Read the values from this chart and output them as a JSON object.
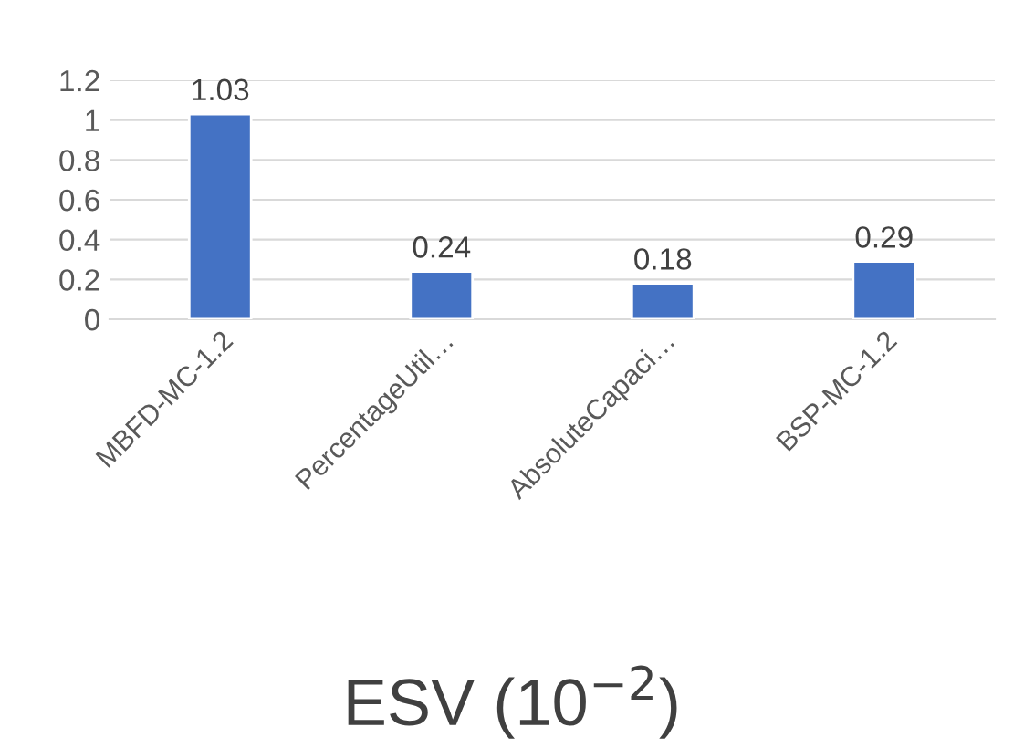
{
  "chart_data": {
    "type": "bar",
    "xlabel": "ESV (10$^{−2}$)",
    "categories": [
      "MBFD-MC-1.2",
      "PercentageUtil…",
      "AbsoluteCapaci…",
      "BSP-MC-1.2"
    ],
    "values": [
      1.03,
      0.24,
      0.18,
      0.29
    ],
    "color": "#4472c4",
    "ylim": [
      0,
      1.2
    ],
    "yticks": [
      0,
      {
        "value": 0.2,
        "label": "0.2"
      },
      {
        "value": 0.4,
        "label": "0.4"
      },
      {
        "value": 0.6,
        "label": "0.6"
      },
      {
        "value": 0.8,
        "label": "0.8"
      },
      1,
      {
        "value": 1.2,
        "label": "1.2"
      }
    ],
    "grid": "y",
    "data_labels": true
  }
}
